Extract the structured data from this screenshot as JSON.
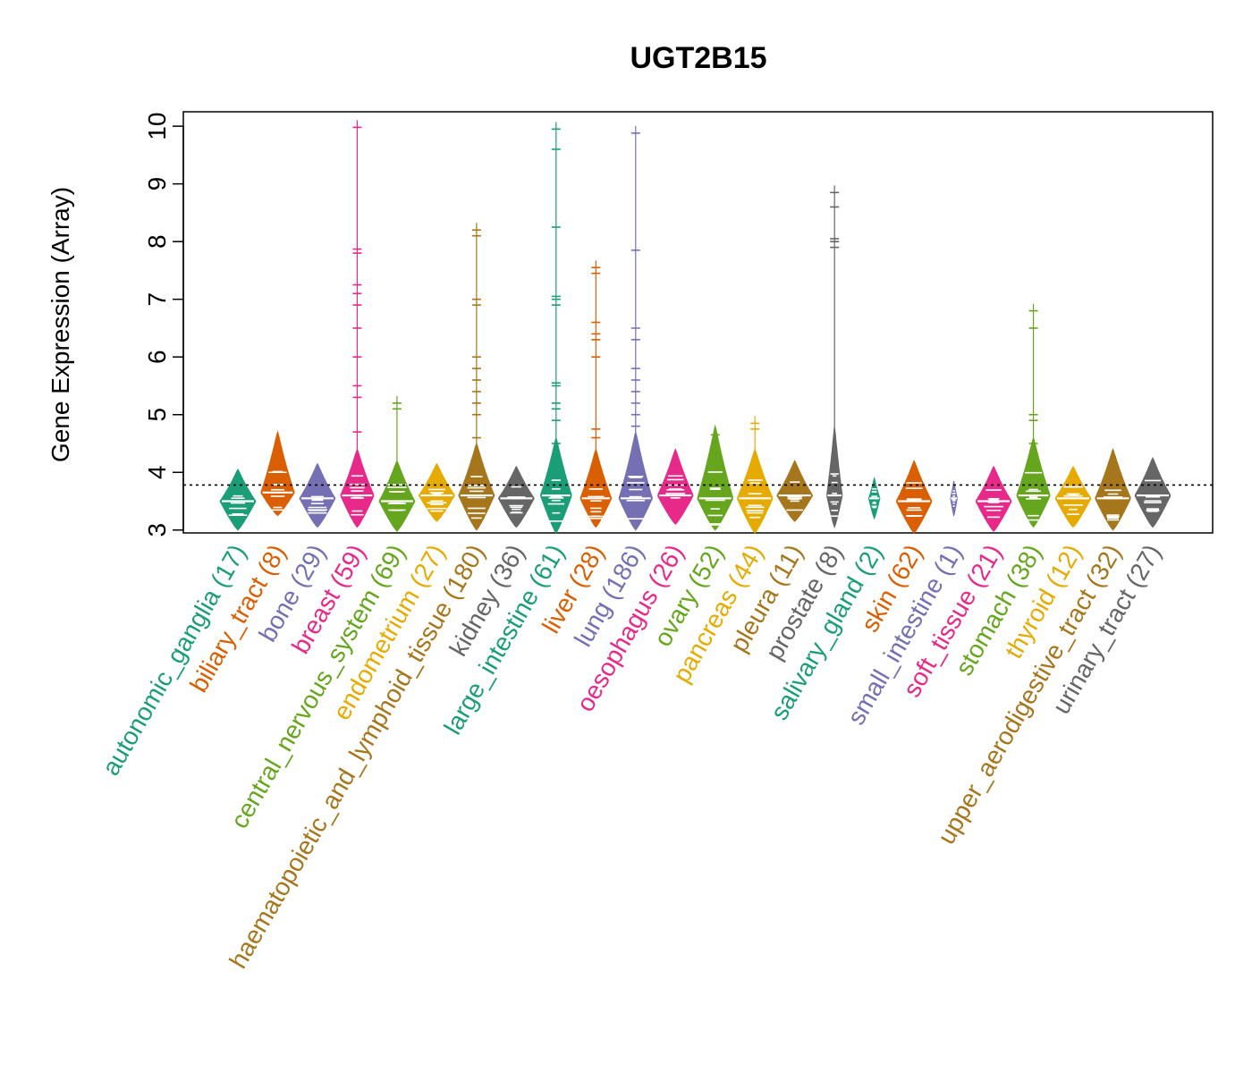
{
  "chart_data": {
    "type": "beanplot",
    "title": "UGT2B15",
    "ylabel": "Gene Expression (Array)",
    "xlabel": "",
    "ylim": [
      2.95,
      10.25
    ],
    "yticks": [
      3,
      4,
      5,
      6,
      7,
      8,
      9,
      10
    ],
    "reference_line": 3.78,
    "grid": false,
    "categories": [
      {
        "label": "autonomic_ganglia (17)",
        "color": "#1B9E77",
        "center": 3.5,
        "low": 3.0,
        "high": 4.05,
        "width": 0.8,
        "outliers": []
      },
      {
        "label": "biliary_tract (8)",
        "color": "#D95F02",
        "center": 3.65,
        "low": 3.25,
        "high": 4.7,
        "width": 0.75,
        "outliers": []
      },
      {
        "label": "bone (29)",
        "color": "#7570B3",
        "center": 3.55,
        "low": 3.05,
        "high": 4.15,
        "width": 0.8,
        "outliers": []
      },
      {
        "label": "breast (59)",
        "color": "#E7298A",
        "center": 3.6,
        "low": 3.05,
        "high": 4.4,
        "width": 0.75,
        "outliers": [
          4.7,
          5.3,
          5.5,
          6.0,
          6.5,
          6.9,
          7.1,
          7.25,
          7.8,
          7.87,
          9.98
        ]
      },
      {
        "label": "central_nervous_system (69)",
        "color": "#66A61E",
        "center": 3.5,
        "low": 2.98,
        "high": 4.2,
        "width": 0.8,
        "outliers": [
          5.1,
          5.2
        ]
      },
      {
        "label": "endometrium (27)",
        "color": "#E6AB02",
        "center": 3.6,
        "low": 3.15,
        "high": 4.15,
        "width": 0.8,
        "outliers": []
      },
      {
        "label": "haematopoietic_and_lymphoid_tissue (180)",
        "color": "#A6761D",
        "center": 3.6,
        "low": 3.0,
        "high": 4.5,
        "width": 0.8,
        "outliers": [
          4.6,
          5.0,
          5.2,
          5.4,
          5.6,
          5.8,
          6.0,
          6.9,
          7.0,
          8.1,
          8.2
        ]
      },
      {
        "label": "kidney (36)",
        "color": "#666666",
        "center": 3.55,
        "low": 3.05,
        "high": 4.1,
        "width": 0.8,
        "outliers": []
      },
      {
        "label": "large_intestine (61)",
        "color": "#1B9E77",
        "center": 3.6,
        "low": 2.95,
        "high": 4.6,
        "width": 0.7,
        "outliers": [
          4.5,
          4.9,
          5.1,
          5.2,
          5.5,
          5.55,
          6.9,
          7.0,
          7.05,
          8.25,
          9.6,
          9.95
        ]
      },
      {
        "label": "liver (28)",
        "color": "#D95F02",
        "center": 3.55,
        "low": 3.05,
        "high": 4.4,
        "width": 0.7,
        "outliers": [
          4.6,
          4.75,
          6.0,
          6.3,
          6.4,
          6.6,
          7.45,
          7.55
        ]
      },
      {
        "label": "lung (186)",
        "color": "#7570B3",
        "center": 3.55,
        "low": 3.0,
        "high": 4.7,
        "width": 0.75,
        "outliers": [
          4.8,
          5.0,
          5.2,
          5.4,
          5.6,
          5.8,
          6.3,
          6.5,
          7.85,
          9.88
        ]
      },
      {
        "label": "oesophagus (26)",
        "color": "#E7298A",
        "center": 3.6,
        "low": 3.1,
        "high": 4.4,
        "width": 0.8,
        "outliers": []
      },
      {
        "label": "ovary (52)",
        "color": "#66A61E",
        "center": 3.55,
        "low": 3.0,
        "high": 4.8,
        "width": 0.8,
        "outliers": [
          4.2,
          4.65
        ]
      },
      {
        "label": "pancreas (44)",
        "color": "#E6AB02",
        "center": 3.55,
        "low": 2.95,
        "high": 4.4,
        "width": 0.8,
        "outliers": [
          4.15,
          4.75,
          4.85
        ]
      },
      {
        "label": "pleura (11)",
        "color": "#A6761D",
        "center": 3.6,
        "low": 3.15,
        "high": 4.2,
        "width": 0.8,
        "outliers": []
      },
      {
        "label": "prostate (8)",
        "color": "#666666",
        "center": 3.6,
        "low": 3.05,
        "high": 4.8,
        "width": 0.35,
        "outliers": [
          7.9,
          8.0,
          8.05,
          8.6,
          8.85
        ]
      },
      {
        "label": "salivary_gland (2)",
        "color": "#1B9E77",
        "center": 3.55,
        "low": 3.2,
        "high": 3.9,
        "width": 0.25,
        "outliers": []
      },
      {
        "label": "skin (62)",
        "color": "#D95F02",
        "center": 3.5,
        "low": 2.95,
        "high": 4.2,
        "width": 0.8,
        "outliers": []
      },
      {
        "label": "small_intestine (1)",
        "color": "#7570B3",
        "center": 3.55,
        "low": 3.25,
        "high": 3.85,
        "width": 0.15,
        "outliers": []
      },
      {
        "label": "soft_tissue (21)",
        "color": "#E7298A",
        "center": 3.5,
        "low": 2.98,
        "high": 4.1,
        "width": 0.8,
        "outliers": []
      },
      {
        "label": "stomach (38)",
        "color": "#66A61E",
        "center": 3.6,
        "low": 3.05,
        "high": 4.6,
        "width": 0.75,
        "outliers": [
          4.3,
          4.5,
          4.9,
          5.0,
          6.5,
          6.8
        ]
      },
      {
        "label": "thyroid (12)",
        "color": "#E6AB02",
        "center": 3.55,
        "low": 3.05,
        "high": 4.1,
        "width": 0.8,
        "outliers": []
      },
      {
        "label": "upper_aerodigestive_tract (32)",
        "color": "#A6761D",
        "center": 3.55,
        "low": 3.0,
        "high": 4.4,
        "width": 0.8,
        "outliers": []
      },
      {
        "label": "urinary_tract (27)",
        "color": "#666666",
        "center": 3.6,
        "low": 3.05,
        "high": 4.25,
        "width": 0.8,
        "outliers": []
      }
    ]
  }
}
